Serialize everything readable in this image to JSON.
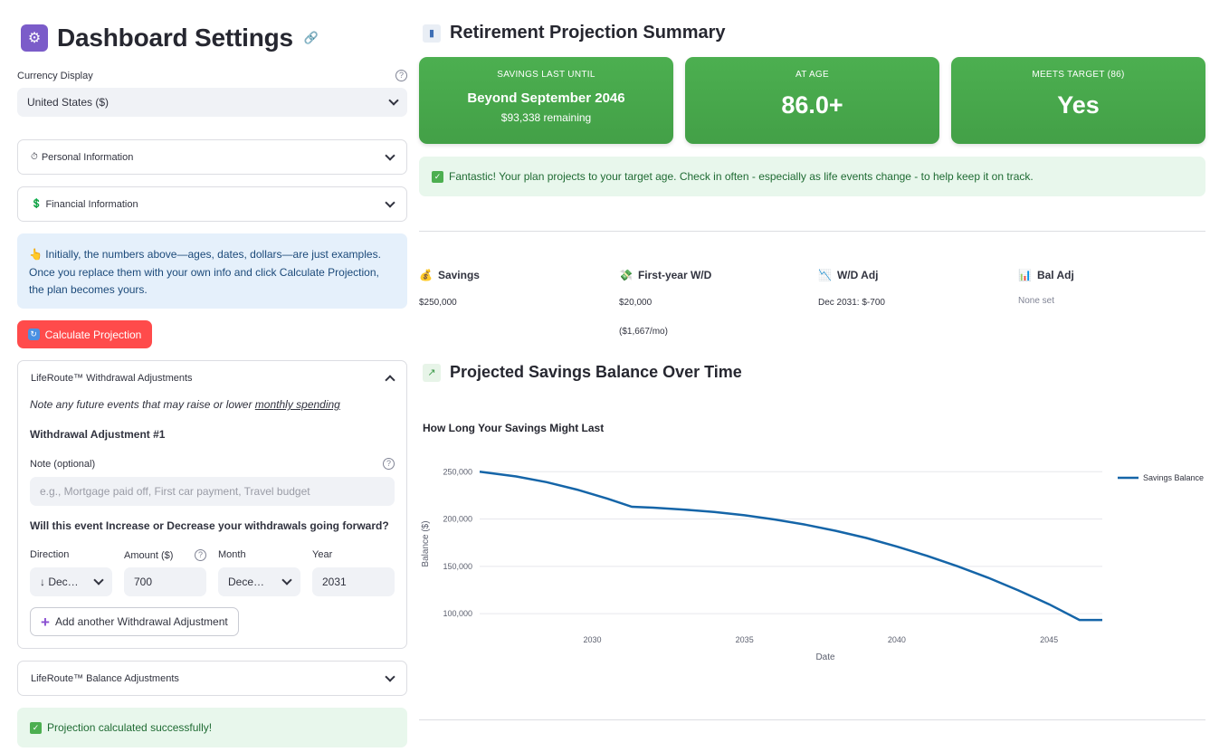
{
  "sidebar": {
    "title": "Dashboard Settings",
    "title_icon": "control-knobs-icon",
    "currency": {
      "label": "Currency Display",
      "value": "United States ($)"
    },
    "personal_info": {
      "label": "Personal Information",
      "icon": "clock-icon"
    },
    "financial_info": {
      "label": "Financial Information",
      "icon": "money-icon"
    },
    "info_text": "👆 Initially, the numbers above—ages, dates, dollars—are just examples. Once you replace them with your own info and click Calculate Projection, the plan becomes yours.",
    "calculate_button": "Calculate Projection",
    "withdrawal_expander": {
      "title": "LifeRoute™ Withdrawal Adjustments",
      "note_prefix": "Note any future events that may raise or lower ",
      "note_link": "monthly spending",
      "adjustment_title": "Withdrawal Adjustment #1",
      "note_label": "Note (optional)",
      "note_placeholder": "e.g., Mortgage paid off, First car payment, Travel budget",
      "question": "Will this event Increase or Decrease your withdrawals going forward?",
      "direction_label": "Direction",
      "direction_value": "↓ Dec…",
      "amount_label": "Amount ($)",
      "amount_value": "700",
      "month_label": "Month",
      "month_value": "Dece…",
      "year_label": "Year",
      "year_value": "2031",
      "add_button": "Add another Withdrawal Adjustment"
    },
    "balance_expander": {
      "title": "LifeRoute™ Balance Adjustments"
    },
    "success_message": "Projection calculated successfully!"
  },
  "summary": {
    "title": "Retirement Projection Summary",
    "cards": [
      {
        "label": "SAVINGS LAST UNTIL",
        "value": "Beyond September 2046",
        "sub": "$93,338 remaining"
      },
      {
        "label": "AT AGE",
        "value": "86.0+"
      },
      {
        "label": "MEETS TARGET (86)",
        "value": "Yes"
      }
    ],
    "banner": "Fantastic! Your plan projects to your target age. Check in often - especially as life events change - to help keep it on track."
  },
  "metrics": [
    {
      "label": "Savings",
      "icon": "money-bag-icon",
      "value": "$250,000"
    },
    {
      "label": "First-year W/D",
      "icon": "money-wings-icon",
      "value": "$20,000",
      "value2": "($1,667/mo)"
    },
    {
      "label": "W/D Adj",
      "icon": "chart-decreasing-icon",
      "value": "Dec 2031: $-700"
    },
    {
      "label": "Bal Adj",
      "icon": "bar-chart-icon",
      "value": "None set"
    }
  ],
  "chart_section": {
    "title": "Projected Savings Balance Over Time"
  },
  "chart_data": {
    "type": "line",
    "title": "How Long Your Savings Might Last",
    "xlabel": "Date",
    "ylabel": "Balance ($)",
    "xlim": [
      2026.3,
      2046.75
    ],
    "ylim": [
      91500,
      256000
    ],
    "xticks": [
      2030,
      2035,
      2040,
      2045
    ],
    "yticks": [
      100000,
      150000,
      200000,
      250000
    ],
    "ytick_labels": [
      "100,000",
      "150,000",
      "200,000",
      "250,000"
    ],
    "legend_position": "top-right",
    "color": "#1565a8",
    "series": [
      {
        "name": "Savings Balance",
        "x": [
          2026.3,
          2027.5,
          2028.5,
          2029.5,
          2030.5,
          2031.3,
          2032,
          2033,
          2034,
          2035,
          2036,
          2037,
          2038,
          2039,
          2040,
          2041,
          2042,
          2043,
          2044,
          2045,
          2046,
          2046.75
        ],
        "y": [
          250000,
          245000,
          239000,
          231000,
          221500,
          213000,
          212000,
          210000,
          207500,
          204000,
          199500,
          194000,
          187500,
          180000,
          171000,
          161000,
          150000,
          138000,
          124500,
          110000,
          93338,
          93338
        ]
      }
    ]
  }
}
